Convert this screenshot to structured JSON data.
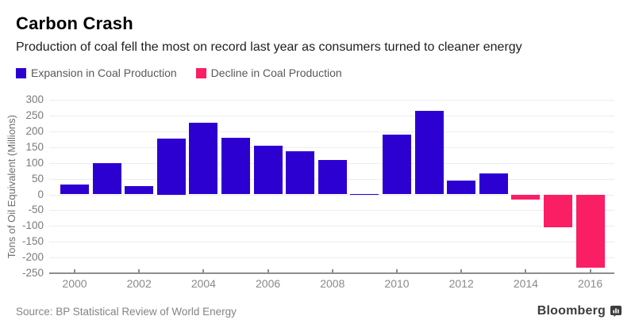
{
  "header": {
    "title": "Carbon Crash",
    "subtitle": "Production of coal fell the most on record last year as consumers turned to cleaner energy"
  },
  "legend": [
    {
      "label": "Expansion in Coal Production",
      "color": "#2d00d2"
    },
    {
      "label": "Decline in Coal Production",
      "color": "#fa1e64"
    }
  ],
  "chart_data": {
    "type": "bar",
    "title": "Carbon Crash",
    "subtitle": "Production of coal fell the most on record last year as consumers turned to cleaner energy",
    "xlabel": "",
    "ylabel": "Tons of Oil Equivalent (Millions)",
    "ylim": [
      -250,
      300
    ],
    "grid": true,
    "legend_position": "top-left",
    "categories": [
      2000,
      2001,
      2002,
      2003,
      2004,
      2005,
      2006,
      2007,
      2008,
      2009,
      2010,
      2011,
      2012,
      2013,
      2014,
      2015,
      2016
    ],
    "values": [
      31,
      98,
      27,
      177,
      228,
      179,
      154,
      138,
      109,
      1,
      190,
      264,
      43,
      67,
      -16,
      -104,
      -231
    ],
    "yticks": [
      300,
      250,
      200,
      150,
      100,
      50,
      0,
      -50,
      -100,
      -150,
      -200,
      -250
    ],
    "xticks": [
      2000,
      2002,
      2004,
      2006,
      2008,
      2010,
      2012,
      2014,
      2016
    ],
    "positive_color": "#2d00d2",
    "negative_color": "#fa1e64"
  },
  "colors": {
    "expansion": "#2d00d2",
    "decline": "#fa1e64",
    "gridline": "#ededed",
    "axis": "#8e8e8e",
    "tick_text": "#7b7b7b",
    "legend_text": "#58595b",
    "source_text": "#848484",
    "brand_text": "#3c3c3c"
  },
  "footer": {
    "source": "Source: BP Statistical Review of World Energy",
    "brand": "Bloomberg"
  }
}
